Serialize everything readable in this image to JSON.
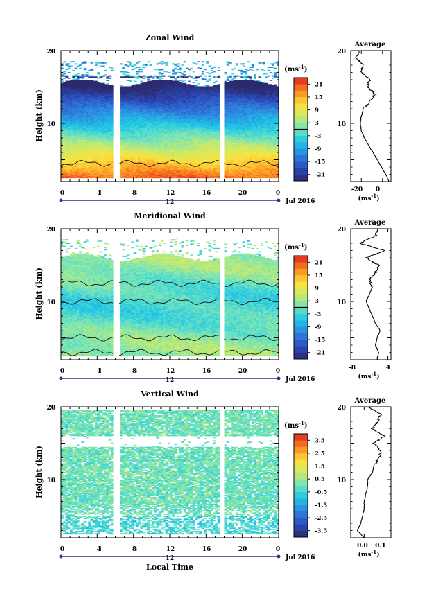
{
  "chart_data": [
    {
      "type": "heatmap",
      "title": "Zonal Wind",
      "ylabel": "Height (km)",
      "x_ticks": [
        "0",
        "4",
        "8",
        "12",
        "16",
        "20",
        "0"
      ],
      "y_ticks": [
        "10",
        "20"
      ],
      "xlim": [
        0,
        24
      ],
      "ylim": [
        2,
        20
      ],
      "date_day": "12",
      "date_label": "Jul 2016",
      "gaps_hours": [
        [
          5.8,
          6.4
        ],
        [
          17.6,
          18.0
        ]
      ],
      "colorbar": {
        "unit": "(ms",
        "unit_sup": "-1",
        "unit_close": ")",
        "ticks": [
          "21",
          "15",
          "9",
          "3",
          "-3",
          "-9",
          "-15",
          "-21"
        ],
        "range": [
          -24,
          24
        ],
        "marker": 0
      },
      "field": {
        "kind": "zonal",
        "top_km": 15.5,
        "sparse_top_km": 18.5
      },
      "profile": {
        "title": "Average",
        "xlabel": "(ms",
        "xlabel_sup": "-1",
        "xlabel_close": ")",
        "x_ticks": [
          "-20",
          "0"
        ],
        "xlim": [
          -30,
          8
        ],
        "y_ticks": [
          "10",
          "20"
        ],
        "height_km": [
          2,
          3,
          4,
          5,
          6,
          7,
          8,
          9,
          10,
          11,
          12,
          13,
          14,
          15,
          16,
          17,
          18,
          19,
          20
        ],
        "mean": [
          6,
          3,
          -1,
          -5,
          -9,
          -13,
          -17,
          -20,
          -21,
          -20,
          -18,
          -12,
          -7,
          -14,
          -12,
          -20,
          -18,
          -25,
          -22
        ]
      }
    },
    {
      "type": "heatmap",
      "title": "Meridional Wind",
      "ylabel": "Height (km)",
      "x_ticks": [
        "0",
        "4",
        "8",
        "12",
        "16",
        "20",
        "0"
      ],
      "y_ticks": [
        "10",
        "20"
      ],
      "xlim": [
        0,
        24
      ],
      "ylim": [
        2,
        20
      ],
      "date_day": "12",
      "date_label": "Jul 2016",
      "gaps_hours": [
        [
          5.8,
          6.4
        ],
        [
          17.6,
          18.0
        ]
      ],
      "colorbar": {
        "unit": "(ms",
        "unit_sup": "-1",
        "unit_close": ")",
        "ticks": [
          "21",
          "15",
          "9",
          "3",
          "-3",
          "-9",
          "-15",
          "-21"
        ],
        "range": [
          -24,
          24
        ],
        "marker": 0
      },
      "field": {
        "kind": "meridional",
        "top_km": 16.0,
        "sparse_top_km": 18.5
      },
      "profile": {
        "title": "Average",
        "xlabel": "(ms",
        "xlabel_sup": "-1",
        "xlabel_close": ")",
        "x_ticks": [
          "-8",
          "4"
        ],
        "xlim": [
          -8,
          5
        ],
        "y_ticks": [
          "10",
          "20"
        ],
        "height_km": [
          2,
          3,
          4,
          5,
          6,
          7,
          8,
          9,
          10,
          11,
          12,
          13,
          14,
          15,
          16,
          17,
          18,
          19,
          20
        ],
        "mean": [
          0.5,
          1,
          0,
          0.5,
          1.5,
          0,
          -1,
          -2,
          -3,
          -2,
          -1,
          -2,
          0,
          1,
          -3,
          3,
          -5,
          0,
          1
        ]
      }
    },
    {
      "type": "heatmap",
      "title": "Vertical Wind",
      "ylabel": "Height (km)",
      "xlabel": "Local Time",
      "x_ticks": [
        "0",
        "4",
        "8",
        "12",
        "16",
        "20",
        "0"
      ],
      "y_ticks": [
        "10",
        "20"
      ],
      "xlim": [
        0,
        24
      ],
      "ylim": [
        2,
        20
      ],
      "date_day": "12",
      "date_label": "Jul 2016",
      "gaps_hours": [
        [
          5.8,
          6.4
        ],
        [
          17.6,
          18.0
        ]
      ],
      "colorbar": {
        "unit": "(ms",
        "unit_sup": "-1",
        "unit_close": ")",
        "ticks": [
          "3.5",
          "2.5",
          "1.5",
          "0.5",
          "-0.5",
          "-1.5",
          "-2.5",
          "-3.5"
        ],
        "range": [
          -4,
          4
        ],
        "marker": null
      },
      "field": {
        "kind": "vertical",
        "top_km": 19.5,
        "sparse_top_km": 19.5
      },
      "profile": {
        "title": "Average",
        "xlabel": "(ms",
        "xlabel_sup": "-1",
        "xlabel_close": ")",
        "x_ticks": [
          "0.0",
          "0.1"
        ],
        "xlim": [
          -0.08,
          0.16
        ],
        "y_ticks": [
          "10",
          "20"
        ],
        "height_km": [
          2,
          3,
          4,
          5,
          6,
          7,
          8,
          9,
          10,
          11,
          12,
          13,
          14,
          15,
          16,
          17,
          18,
          19,
          20
        ],
        "mean": [
          0.0,
          -0.04,
          -0.02,
          -0.01,
          0.0,
          0.0,
          0.01,
          0.02,
          0.02,
          0.05,
          0.06,
          0.09,
          0.1,
          0.06,
          0.12,
          0.05,
          0.08,
          0.1,
          0.02
        ]
      }
    }
  ]
}
